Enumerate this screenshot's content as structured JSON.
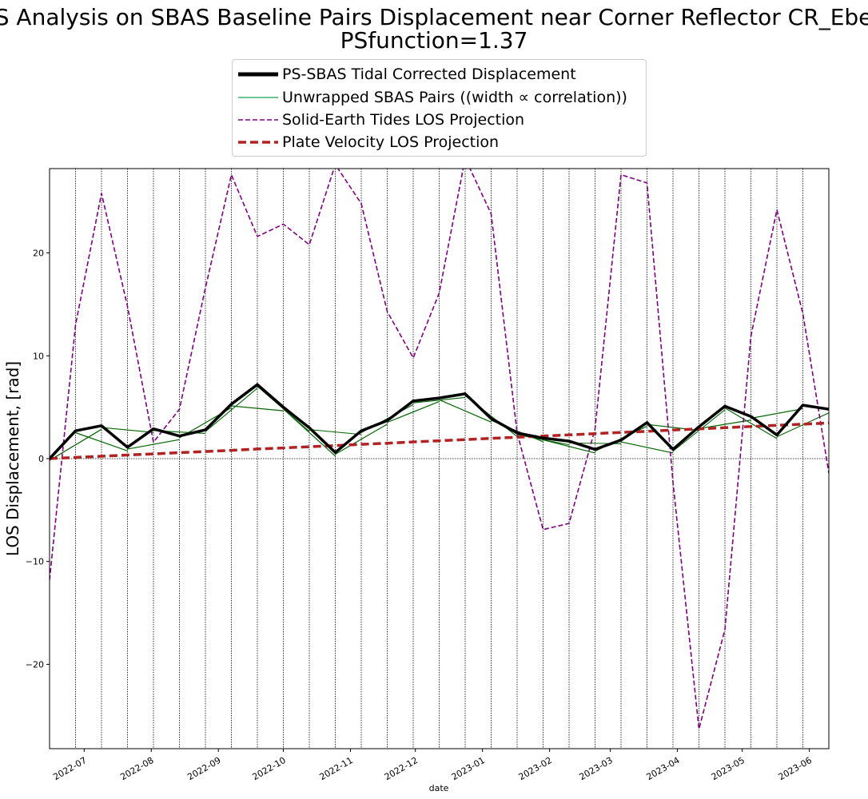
{
  "chart_data": {
    "type": "line",
    "title": "PS Analysis on SBAS Baseline Pairs Displacement near Corner Reflector CR_Eben",
    "subtitle": "PSfunction=1.37",
    "xlabel": "date",
    "ylabel": "LOS Displacement, [rad]",
    "ylim": [
      -28.2,
      28.2
    ],
    "xlim": [
      "2022-06-15",
      "2023-06-10"
    ],
    "yticks": [
      -20,
      -10,
      0,
      10,
      20
    ],
    "xticks": [
      "2022-07",
      "2022-08",
      "2022-09",
      "2022-10",
      "2022-11",
      "2022-12",
      "2023-01",
      "2023-02",
      "2023-03",
      "2023-04",
      "2023-05",
      "2023-06"
    ],
    "acquisition_dates": [
      "2022-06-15",
      "2022-06-27",
      "2022-07-09",
      "2022-07-21",
      "2022-08-02",
      "2022-08-14",
      "2022-08-26",
      "2022-09-07",
      "2022-09-19",
      "2022-10-01",
      "2022-10-13",
      "2022-10-25",
      "2022-11-06",
      "2022-11-18",
      "2022-11-30",
      "2022-12-12",
      "2022-12-24",
      "2023-01-05",
      "2023-01-17",
      "2023-01-29",
      "2023-02-10",
      "2023-02-22",
      "2023-03-06",
      "2023-03-18",
      "2023-03-30",
      "2023-04-11",
      "2023-04-23",
      "2023-05-05",
      "2023-05-17",
      "2023-05-29",
      "2023-06-10"
    ],
    "series": [
      {
        "name": "PS-SBAS Tidal Corrected Displacement",
        "color": "#000000",
        "style": "solid-thick",
        "values": [
          0.0,
          2.7,
          3.2,
          1.1,
          2.9,
          2.2,
          2.8,
          5.3,
          7.2,
          5.0,
          3.0,
          0.6,
          2.7,
          3.7,
          5.6,
          5.9,
          6.3,
          3.9,
          2.5,
          2.0,
          1.7,
          0.9,
          1.8,
          3.5,
          0.9,
          3.1,
          5.1,
          4.1,
          2.3,
          5.2,
          4.8
        ]
      },
      {
        "name": "Solid-Earth Tides LOS Projection",
        "color": "#800080",
        "style": "dashed",
        "values": [
          -11.8,
          13.0,
          25.8,
          14.8,
          1.6,
          4.8,
          16.6,
          27.6,
          21.6,
          22.8,
          20.8,
          28.6,
          24.8,
          14.3,
          9.8,
          16.1,
          29.2,
          23.8,
          2.5,
          -6.9,
          -6.3,
          2.9,
          27.6,
          26.8,
          -2.3,
          -26.3,
          -16.6,
          11.9,
          24.2,
          14.1,
          -1.4
        ]
      },
      {
        "name": "Plate Velocity LOS Projection",
        "color": "#b22222",
        "style": "dashed-thick",
        "values": [
          0.0,
          0.12,
          0.23,
          0.35,
          0.46,
          0.58,
          0.69,
          0.81,
          0.93,
          1.04,
          1.16,
          1.27,
          1.39,
          1.5,
          1.62,
          1.74,
          1.85,
          1.97,
          2.08,
          2.2,
          2.31,
          2.43,
          2.55,
          2.66,
          2.78,
          2.89,
          3.01,
          3.12,
          3.24,
          3.35,
          3.47
        ]
      }
    ],
    "sbas_pairs": {
      "name": "Unwrapped SBAS Pairs ((width ∝ correlation))",
      "color": "#006400",
      "legend_color": "#3cb371",
      "pairs": [
        {
          "from": 0,
          "to": 1,
          "width": 1.5
        },
        {
          "from": 0,
          "to": 2,
          "width": 1.2
        },
        {
          "from": 1,
          "to": 2,
          "width": 1.4
        },
        {
          "from": 1,
          "to": 3,
          "width": 1.2
        },
        {
          "from": 2,
          "to": 3,
          "width": 1.5
        },
        {
          "from": 2,
          "to": 4,
          "width": 1.1
        },
        {
          "from": 3,
          "to": 4,
          "width": 1.5
        },
        {
          "from": 3,
          "to": 5,
          "width": 1.2
        },
        {
          "from": 4,
          "to": 5,
          "width": 1.5
        },
        {
          "from": 4,
          "to": 6,
          "width": 1.1
        },
        {
          "from": 5,
          "to": 6,
          "width": 1.5
        },
        {
          "from": 5,
          "to": 7,
          "width": 1.2
        },
        {
          "from": 6,
          "to": 7,
          "width": 1.5
        },
        {
          "from": 6,
          "to": 8,
          "width": 1.1
        },
        {
          "from": 7,
          "to": 8,
          "width": 1.5
        },
        {
          "from": 7,
          "to": 9,
          "width": 1.2
        },
        {
          "from": 8,
          "to": 9,
          "width": 1.5
        },
        {
          "from": 8,
          "to": 10,
          "width": 1.1
        },
        {
          "from": 9,
          "to": 10,
          "width": 1.5
        },
        {
          "from": 9,
          "to": 11,
          "width": 1.2
        },
        {
          "from": 10,
          "to": 11,
          "width": 1.5
        },
        {
          "from": 10,
          "to": 12,
          "width": 1.1
        },
        {
          "from": 11,
          "to": 12,
          "width": 1.5
        },
        {
          "from": 11,
          "to": 13,
          "width": 1.2
        },
        {
          "from": 12,
          "to": 13,
          "width": 1.5
        },
        {
          "from": 12,
          "to": 14,
          "width": 1.1
        },
        {
          "from": 13,
          "to": 14,
          "width": 1.5
        },
        {
          "from": 13,
          "to": 15,
          "width": 1.2
        },
        {
          "from": 14,
          "to": 15,
          "width": 1.5
        },
        {
          "from": 14,
          "to": 16,
          "width": 1.1
        },
        {
          "from": 15,
          "to": 16,
          "width": 1.5
        },
        {
          "from": 15,
          "to": 17,
          "width": 1.2
        },
        {
          "from": 16,
          "to": 17,
          "width": 1.5
        },
        {
          "from": 16,
          "to": 18,
          "width": 1.1
        },
        {
          "from": 17,
          "to": 18,
          "width": 1.5
        },
        {
          "from": 17,
          "to": 19,
          "width": 1.2
        },
        {
          "from": 18,
          "to": 19,
          "width": 1.5
        },
        {
          "from": 18,
          "to": 20,
          "width": 1.1
        },
        {
          "from": 19,
          "to": 20,
          "width": 1.5
        },
        {
          "from": 19,
          "to": 21,
          "width": 1.2
        },
        {
          "from": 20,
          "to": 21,
          "width": 1.5
        },
        {
          "from": 20,
          "to": 22,
          "width": 1.1
        },
        {
          "from": 21,
          "to": 22,
          "width": 1.5
        },
        {
          "from": 21,
          "to": 23,
          "width": 1.2
        },
        {
          "from": 22,
          "to": 23,
          "width": 1.5
        },
        {
          "from": 22,
          "to": 24,
          "width": 1.1
        },
        {
          "from": 23,
          "to": 24,
          "width": 1.5
        },
        {
          "from": 23,
          "to": 25,
          "width": 1.2
        },
        {
          "from": 24,
          "to": 25,
          "width": 1.5
        },
        {
          "from": 24,
          "to": 26,
          "width": 1.1
        },
        {
          "from": 25,
          "to": 26,
          "width": 1.5
        },
        {
          "from": 25,
          "to": 27,
          "width": 1.2
        },
        {
          "from": 26,
          "to": 27,
          "width": 1.5
        },
        {
          "from": 26,
          "to": 28,
          "width": 1.1
        },
        {
          "from": 27,
          "to": 28,
          "width": 1.5
        },
        {
          "from": 27,
          "to": 29,
          "width": 1.2
        },
        {
          "from": 28,
          "to": 29,
          "width": 1.5
        },
        {
          "from": 28,
          "to": 30,
          "width": 1.1
        },
        {
          "from": 29,
          "to": 30,
          "width": 1.5
        }
      ]
    },
    "legend": {
      "position": "top-center",
      "entries": [
        "PS-SBAS Tidal Corrected Displacement",
        "Unwrapped SBAS Pairs ((width ∝ correlation))",
        "Solid-Earth Tides LOS Projection",
        "Plate Velocity LOS Projection"
      ]
    },
    "grid": "vertical dotted lines at acquisition dates; horizontal dotted line at zero"
  }
}
